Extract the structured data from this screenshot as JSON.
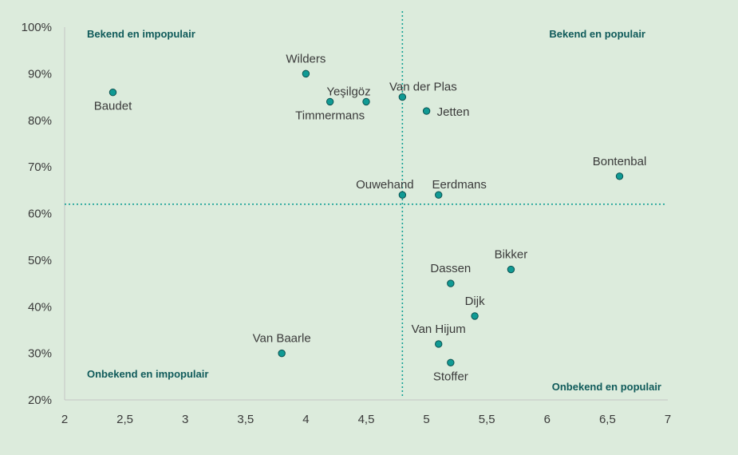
{
  "chart_data": {
    "type": "scatter",
    "xlim": [
      2,
      7
    ],
    "ylim": [
      20,
      100
    ],
    "x_ticks": [
      "2",
      "2,5",
      "3",
      "3,5",
      "4",
      "4,5",
      "5",
      "5,5",
      "6",
      "6,5",
      "7"
    ],
    "y_ticks": [
      "20%",
      "30%",
      "40%",
      "50%",
      "60%",
      "70%",
      "80%",
      "90%",
      "100%"
    ],
    "reference_lines": {
      "x": 4.8,
      "y": 62
    },
    "quadrant_labels": {
      "top_left": "Bekend en impopulair",
      "top_right": "Bekend en populair",
      "bottom_left": "Onbekend en impopulair",
      "bottom_right": "Onbekend en populair"
    },
    "points": [
      {
        "label": "Baudet",
        "x": 2.4,
        "y": 86,
        "pos": "below"
      },
      {
        "label": "Wilders",
        "x": 4.0,
        "y": 90,
        "pos": "above"
      },
      {
        "label": "Timmermans",
        "x": 4.2,
        "y": 84,
        "pos": "below"
      },
      {
        "label": "Yeşilgöz",
        "x": 4.5,
        "y": 84,
        "pos": "above-left"
      },
      {
        "label": "Van der Plas",
        "x": 4.8,
        "y": 85,
        "pos": "above-right"
      },
      {
        "label": "Jetten",
        "x": 5.0,
        "y": 82,
        "pos": "right"
      },
      {
        "label": "Bontenbal",
        "x": 6.6,
        "y": 68,
        "pos": "above"
      },
      {
        "label": "Ouwehand",
        "x": 4.8,
        "y": 64,
        "pos": "above-left"
      },
      {
        "label": "Eerdmans",
        "x": 5.1,
        "y": 64,
        "pos": "above-right"
      },
      {
        "label": "Bikker",
        "x": 5.7,
        "y": 48,
        "pos": "above"
      },
      {
        "label": "Dassen",
        "x": 5.2,
        "y": 45,
        "pos": "above"
      },
      {
        "label": "Dijk",
        "x": 5.4,
        "y": 38,
        "pos": "above"
      },
      {
        "label": "Van Hijum",
        "x": 5.1,
        "y": 32,
        "pos": "above"
      },
      {
        "label": "Van Baarle",
        "x": 3.8,
        "y": 30,
        "pos": "above"
      },
      {
        "label": "Stoffer",
        "x": 5.2,
        "y": 28,
        "pos": "below"
      }
    ]
  },
  "colors": {
    "background": "#dcebdc",
    "marker_fill": "#109a94",
    "marker_stroke": "#0b5250",
    "reference_line": "#13a095",
    "axis": "#c4c4c4",
    "quadrant_text": "#0f5a5a"
  }
}
